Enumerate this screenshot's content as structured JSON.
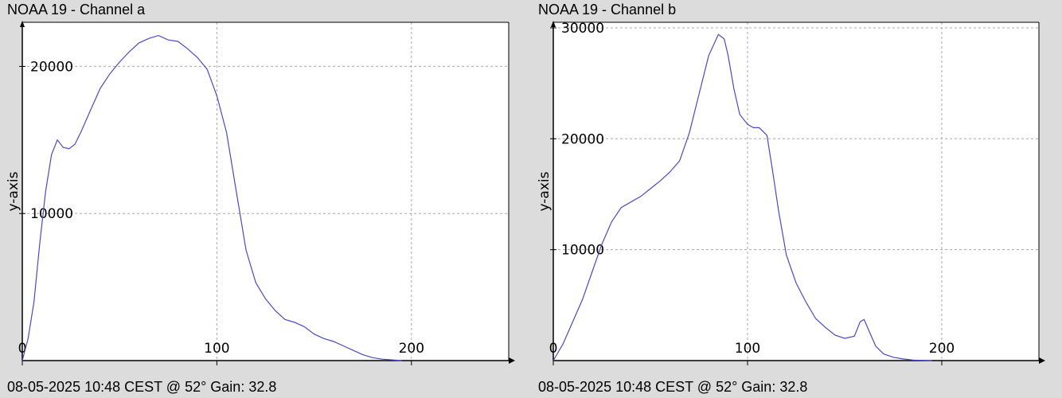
{
  "chart_data": [
    {
      "type": "line",
      "title": "NOAA 19 - Channel a",
      "footer": "08-05-2025 10:48 CEST @ 52° Gain: 32.8",
      "xlabel": "",
      "ylabel": "y-axis",
      "xlim": [
        0,
        250
      ],
      "ylim": [
        0,
        23000
      ],
      "xticks": [
        0,
        100,
        200
      ],
      "yticks": [
        10000,
        20000
      ],
      "grid": true,
      "series": [
        {
          "color": "#4a4ac8",
          "x": [
            0,
            3,
            6,
            9,
            12,
            15,
            18,
            21,
            24,
            27,
            30,
            35,
            40,
            45,
            50,
            55,
            60,
            65,
            70,
            75,
            80,
            85,
            90,
            95,
            100,
            105,
            110,
            115,
            120,
            125,
            130,
            135,
            140,
            145,
            150,
            155,
            160,
            165,
            170,
            175,
            180,
            185,
            190,
            195
          ],
          "y": [
            0,
            1500,
            4000,
            8000,
            11500,
            14000,
            15000,
            14500,
            14400,
            14700,
            15500,
            17000,
            18500,
            19500,
            20300,
            21000,
            21600,
            21900,
            22100,
            21800,
            21700,
            21200,
            20600,
            19800,
            18000,
            15500,
            11500,
            7500,
            5300,
            4200,
            3400,
            2800,
            2600,
            2300,
            1800,
            1500,
            1300,
            1000,
            700,
            400,
            200,
            100,
            50,
            0
          ]
        }
      ]
    },
    {
      "type": "line",
      "title": "NOAA 19 - Channel b",
      "footer": "08-05-2025 10:48 CEST @ 52° Gain: 32.8",
      "xlabel": "",
      "ylabel": "y-axis",
      "xlim": [
        0,
        250
      ],
      "ylim": [
        0,
        30500
      ],
      "xticks": [
        0,
        100,
        200
      ],
      "yticks": [
        10000,
        20000,
        30000
      ],
      "grid": true,
      "series": [
        {
          "color": "#4a4ac8",
          "x": [
            0,
            5,
            10,
            15,
            20,
            25,
            30,
            35,
            40,
            45,
            50,
            55,
            60,
            65,
            70,
            75,
            80,
            85,
            88,
            90,
            93,
            96,
            100,
            103,
            106,
            110,
            113,
            116,
            120,
            125,
            130,
            135,
            140,
            145,
            150,
            155,
            158,
            160,
            163,
            166,
            170,
            175,
            180,
            185,
            190,
            195
          ],
          "y": [
            0,
            1500,
            3500,
            5500,
            8000,
            10500,
            12500,
            13800,
            14300,
            14800,
            15500,
            16200,
            17000,
            18000,
            20500,
            24000,
            27500,
            29400,
            29000,
            27500,
            24500,
            22200,
            21300,
            21000,
            21000,
            20300,
            17000,
            13500,
            9500,
            7000,
            5300,
            3800,
            3000,
            2300,
            2000,
            2200,
            3500,
            3700,
            2500,
            1300,
            600,
            300,
            150,
            50,
            20,
            0
          ]
        }
      ]
    }
  ]
}
